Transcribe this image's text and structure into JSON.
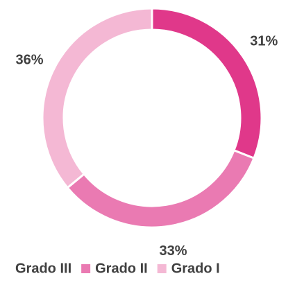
{
  "chart_data": {
    "type": "donut",
    "series": [
      {
        "name": "Grado III",
        "color": "#e0388a",
        "values": [
          31
        ],
        "value_labels": [
          "31%"
        ]
      },
      {
        "name": "Grado II",
        "color": "#ea7ab2",
        "values": [
          33
        ],
        "value_labels": [
          "33%"
        ]
      },
      {
        "name": "Grado I",
        "color": "#f4b8d4",
        "values": [
          36
        ],
        "value_labels": [
          "36%"
        ]
      }
    ],
    "legend": "bottom"
  }
}
